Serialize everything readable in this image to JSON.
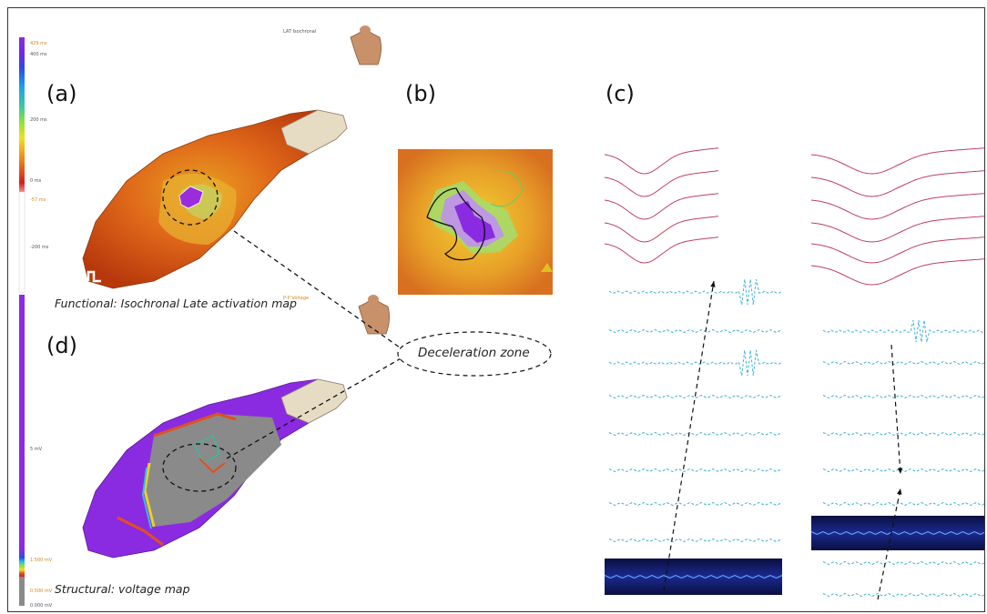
{
  "panels": {
    "a": {
      "label": "(a)",
      "caption": "Functional: Isochronal Late activation map"
    },
    "b": {
      "label": "(b)"
    },
    "c": {
      "label": "(c)"
    },
    "d": {
      "label": "(d)",
      "caption": "Structural: voltage map"
    }
  },
  "callout": {
    "text": "Deceleration zone"
  },
  "map_header": {
    "lat_title": "LAT Isochronal",
    "voltage_title": "P-P Voltage"
  },
  "lat_scale": {
    "labels": [
      "429 ms",
      "400 ms",
      "200 ms",
      "0 ms",
      "-57 ms",
      "-200 ms"
    ]
  },
  "voltage_scale": {
    "labels": [
      "5 mV",
      "1.500 mV",
      "0.500 mV",
      "0.000 mV"
    ]
  },
  "colors": {
    "purple": "#8a2be2",
    "ecg_red": "#c04060",
    "egm_cyan": "#3fb3d8",
    "scar_gray": "#8a8a8a",
    "tissue_orange": "#d8581a"
  },
  "icons": [
    "torso-icon",
    "torso-icon"
  ]
}
